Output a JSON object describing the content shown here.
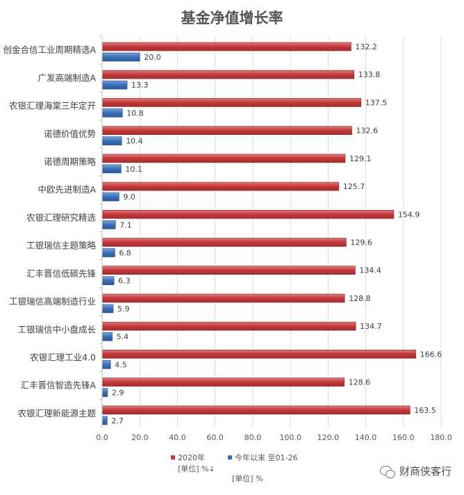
{
  "chart_data": {
    "type": "bar",
    "orientation": "horizontal",
    "title": "基金净值增长率",
    "categories": [
      "创金合信工业周期精选A",
      "广发高端制造A",
      "农银汇理海棠三年定开",
      "诺德价值优势",
      "诺德周期策略",
      "中欧先进制造A",
      "农银汇理研究精选",
      "工银瑞信主题策略",
      "汇丰晋信低碳先锋",
      "工银瑞信高端制造行业",
      "工银瑞信中小盘成长",
      "农银汇理工业4.0",
      "汇丰晋信智造先锋A",
      "农银汇理新能源主题"
    ],
    "series": [
      {
        "name": "2020年",
        "color": "#c0393b",
        "values": [
          132.2,
          133.8,
          137.5,
          132.6,
          129.1,
          125.7,
          154.9,
          129.6,
          134.4,
          128.8,
          134.7,
          166.6,
          128.6,
          163.5
        ],
        "labels": [
          "132.2",
          "133.8",
          "137.5",
          "132.6",
          "129.1",
          "125.7",
          "154.9",
          "129.6",
          "134.4",
          "128.8",
          "134.7",
          "166.6",
          "128.6",
          "163.5"
        ]
      },
      {
        "name": "今年以来 至01-26",
        "color": "#3a6fb5",
        "values": [
          20.0,
          13.3,
          10.8,
          10.4,
          10.1,
          9.0,
          7.1,
          6.8,
          6.3,
          5.9,
          5.4,
          4.5,
          2.9,
          2.7
        ],
        "labels": [
          "20.0",
          "13.3",
          "10.8",
          "10.4",
          "10.1",
          "9.0",
          "7.1",
          "6.8",
          "6.3",
          "5.9",
          "5.4",
          "4.5",
          "2.9",
          "2.7"
        ]
      }
    ],
    "xlim": [
      0,
      180
    ],
    "xticks": [
      "0.0",
      "20.0",
      "40.0",
      "60.0",
      "80.0",
      "100.0",
      "120.0",
      "140.0",
      "160.0",
      "180.0"
    ],
    "grid": "vertical",
    "legend_position": "bottom",
    "legend_unit_1": "[单位] %↓",
    "legend_unit_2": "[单位] %"
  },
  "watermark": {
    "text": "财商侠客行",
    "icon": "wechat-icon"
  }
}
